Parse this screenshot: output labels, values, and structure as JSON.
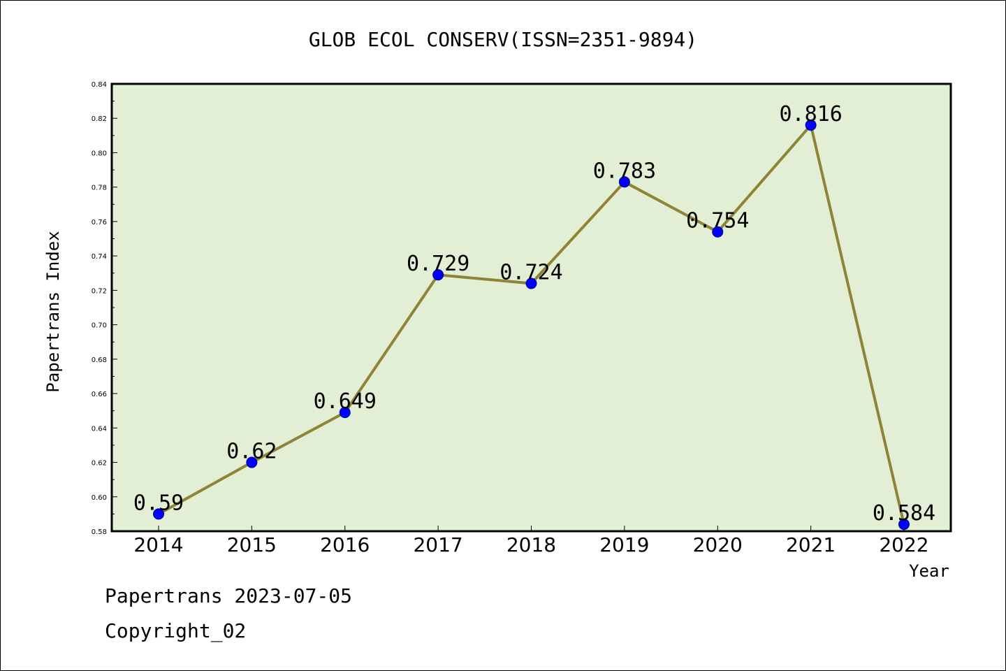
{
  "chart_data": {
    "type": "line",
    "title": "GLOB ECOL CONSERV(ISSN=2351-9894)",
    "xlabel": "Year",
    "ylabel": "Papertrans Index",
    "categories": [
      "2014",
      "2015",
      "2016",
      "2017",
      "2018",
      "2019",
      "2020",
      "2021",
      "2022"
    ],
    "series": [
      {
        "values": [
          0.59,
          0.62,
          0.649,
          0.729,
          0.724,
          0.783,
          0.754,
          0.816,
          0.584
        ],
        "labels": [
          "0.59",
          "0.62",
          "0.649",
          "0.729",
          "0.724",
          "0.783",
          "0.754",
          "0.816",
          "0.584"
        ]
      }
    ],
    "ylim": [
      0.58,
      0.84
    ],
    "yticks": [
      "0.58",
      "0.60",
      "0.62",
      "0.64",
      "0.66",
      "0.68",
      "0.70",
      "0.72",
      "0.74",
      "0.76",
      "0.78",
      "0.80",
      "0.82",
      "0.84"
    ],
    "grid": false,
    "colors": {
      "plot_background": "#e2efd5",
      "line": "#8f8436",
      "marker": "#0000ff"
    }
  },
  "footer": {
    "line1": "Papertrans 2023-07-05",
    "line2": "Copyright_02"
  }
}
